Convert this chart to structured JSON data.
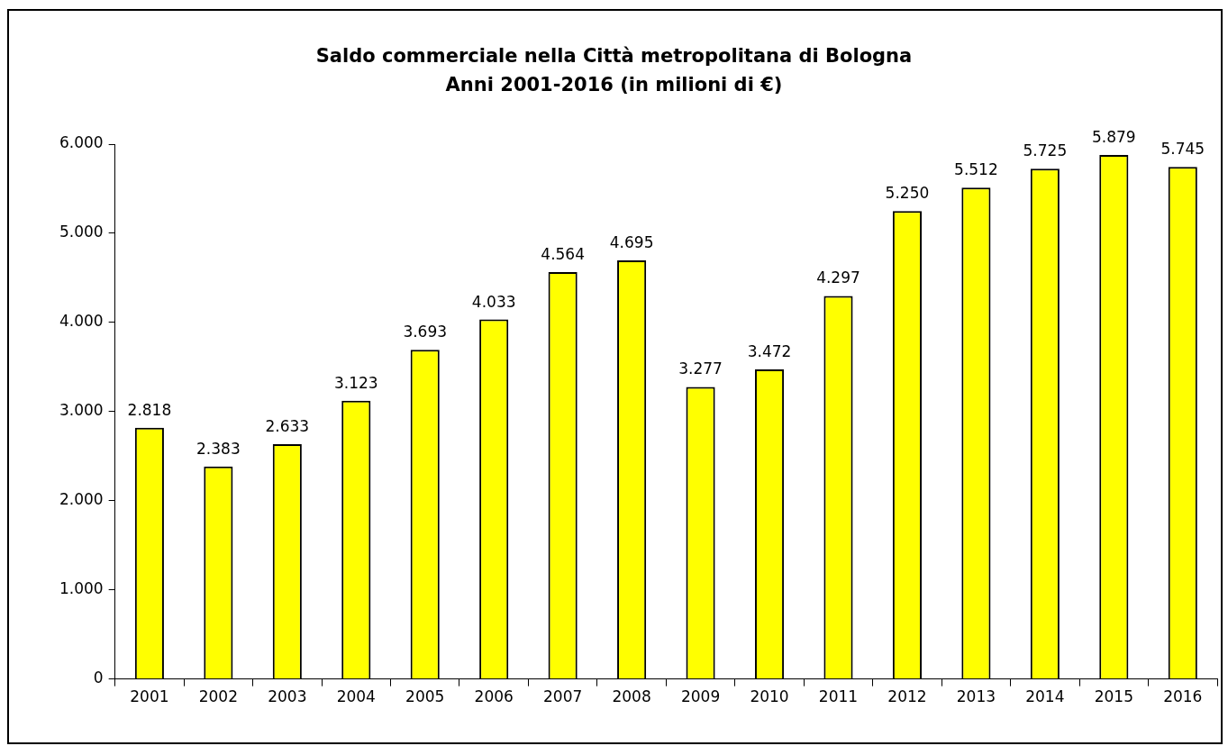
{
  "chart_data": {
    "type": "bar",
    "title": "Saldo commerciale nella Città metropolitana di Bologna",
    "subtitle": "Anni 2001-2016 (in milioni di €)",
    "categories": [
      "2001",
      "2002",
      "2003",
      "2004",
      "2005",
      "2006",
      "2007",
      "2008",
      "2009",
      "2010",
      "2011",
      "2012",
      "2013",
      "2014",
      "2015",
      "2016"
    ],
    "values": [
      2818,
      2383,
      2633,
      3123,
      3693,
      4033,
      4564,
      4695,
      3277,
      3472,
      4297,
      5250,
      5512,
      5725,
      5879,
      5745
    ],
    "value_labels": [
      "2.818",
      "2.383",
      "2.633",
      "3.123",
      "3.693",
      "4.033",
      "4.564",
      "4.695",
      "3.277",
      "3.472",
      "4.297",
      "5.250",
      "5.512",
      "5.725",
      "5.879",
      "5.745"
    ],
    "color": "#ffff00",
    "ylim": [
      0,
      6000
    ],
    "yticks": [
      {
        "value": 0,
        "label": "0"
      },
      {
        "value": 1000,
        "label": "1.000"
      },
      {
        "value": 2000,
        "label": "2.000"
      },
      {
        "value": 3000,
        "label": "3.000"
      },
      {
        "value": 4000,
        "label": "4.000"
      },
      {
        "value": 5000,
        "label": "5.000"
      },
      {
        "value": 6000,
        "label": "6.000"
      }
    ],
    "grid": false,
    "legend": false
  }
}
